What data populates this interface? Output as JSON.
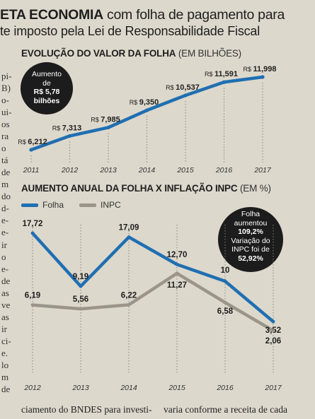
{
  "header": {
    "line1_lead": "ETA ECONOMIA",
    "line1_rest": " com folha de pagamento para",
    "line2": "te imposto pela Lei de Responsabilidade Fiscal"
  },
  "left_column_fragments": [
    "pi-",
    "B)",
    "o-",
    "ui-",
    "os",
    "ra",
    "o",
    "tá",
    "de",
    "m",
    "do",
    "d-",
    "e-",
    "e-",
    "ir",
    "o",
    "e-",
    "de",
    "as",
    "ve",
    "as",
    "ir",
    "ci-",
    "e.",
    "lo",
    "m",
    "de"
  ],
  "colors": {
    "folha": "#1f6fb2",
    "inpc": "#9a948a",
    "bubble": "#1c1c1c",
    "background": "#ddd8cc"
  },
  "chart_data": [
    {
      "type": "line",
      "title": "EVOLUÇÃO DO VALOR DA FOLHA",
      "title_unit": "(EM BILHÕES)",
      "x": [
        "2011",
        "2012",
        "2013",
        "2014",
        "2015",
        "2016",
        "2017"
      ],
      "series": [
        {
          "values": [
            6.212,
            7.313,
            7.985,
            9.35,
            10.537,
            11.591,
            11.998
          ],
          "labels": [
            "R$ 6,212",
            "R$ 7,313",
            "R$ 7,985",
            "R$ 9,350",
            "R$ 10,537",
            "R$ 11,591",
            "R$ 11,998"
          ]
        }
      ],
      "annotation": {
        "line1": "Aumento",
        "line2": "de",
        "line3": "R$ 5,78",
        "line4": "bilhões"
      },
      "grid": "vertical dotted"
    },
    {
      "type": "line",
      "title": "AUMENTO ANUAL DA FOLHA X INFLAÇÃO INPC",
      "title_unit": "(EM %)",
      "x": [
        "2012",
        "2013",
        "2014",
        "2015",
        "2016",
        "2017"
      ],
      "series": [
        {
          "name": "Folha",
          "values": [
            17.72,
            9.19,
            17.09,
            12.7,
            10,
            3.52
          ],
          "labels": [
            "17,72",
            "9,19",
            "17,09",
            "12,70",
            "10",
            "3,52"
          ]
        },
        {
          "name": "INPC",
          "values": [
            6.19,
            5.56,
            6.22,
            11.27,
            6.58,
            2.06
          ],
          "labels": [
            "6,19",
            "5,56",
            "6,22",
            "11,27",
            "6,58",
            "2,06"
          ]
        }
      ],
      "annotation": {
        "line1": "Folha",
        "line2": "aumentou",
        "line3": "109,2%",
        "line4": "Variação do",
        "line5": "INPC foi de",
        "line6": "52,92%"
      },
      "legend": "top-left",
      "grid": "vertical dotted"
    }
  ],
  "footer_text": {
    "left": "ciamento do BNDES para investi-",
    "right": "varia conforme a receita de cada"
  }
}
